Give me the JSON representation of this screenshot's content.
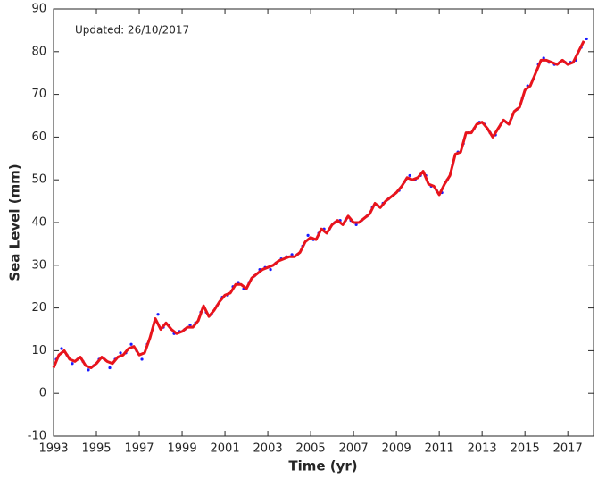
{
  "chart_data": {
    "type": "line",
    "annotation": "Updated: 26/10/2017",
    "x_label": "Time (yr)",
    "y_label": "Sea Level (mm)",
    "xlim": [
      1993,
      2018.2
    ],
    "ylim": [
      -10,
      90
    ],
    "xticks": [
      1993,
      1995,
      1997,
      1999,
      2001,
      2003,
      2005,
      2007,
      2009,
      2011,
      2013,
      2015,
      2017
    ],
    "yticks": [
      -10,
      0,
      10,
      20,
      30,
      40,
      50,
      60,
      70,
      80,
      90
    ],
    "grid": false,
    "series": [
      {
        "type": "scatter",
        "color": "#1a1aff",
        "x": [
          1993.125,
          1993.375,
          1993.625,
          1993.875,
          1994.125,
          1994.375,
          1994.625,
          1994.875,
          1995.125,
          1995.375,
          1995.625,
          1995.875,
          1996.125,
          1996.375,
          1996.625,
          1996.875,
          1997.125,
          1997.375,
          1997.625,
          1997.875,
          1998.125,
          1998.375,
          1998.625,
          1998.875,
          1999.125,
          1999.375,
          1999.625,
          1999.875,
          2000.125,
          2000.375,
          2000.625,
          2000.875,
          2001.125,
          2001.375,
          2001.625,
          2001.875,
          2002.125,
          2002.375,
          2002.625,
          2002.875,
          2003.125,
          2003.375,
          2003.625,
          2003.875,
          2004.125,
          2004.375,
          2004.625,
          2004.875,
          2005.125,
          2005.375,
          2005.625,
          2005.875,
          2006.125,
          2006.375,
          2006.625,
          2006.875,
          2007.125,
          2007.375,
          2007.625,
          2007.875,
          2008.125,
          2008.375,
          2008.625,
          2008.875,
          2009.125,
          2009.375,
          2009.625,
          2009.875,
          2010.125,
          2010.375,
          2010.625,
          2010.875,
          2011.125,
          2011.375,
          2011.625,
          2011.875,
          2012.125,
          2012.375,
          2012.625,
          2012.875,
          2013.125,
          2013.375,
          2013.625,
          2013.875,
          2014.125,
          2014.375,
          2014.625,
          2014.875,
          2015.125,
          2015.375,
          2015.625,
          2015.875,
          2016.125,
          2016.375,
          2016.625,
          2016.875,
          2017.125,
          2017.375,
          2017.625,
          2017.875
        ],
        "values": [
          8,
          10.5,
          9,
          7,
          8,
          7.5,
          5.5,
          6.5,
          8,
          8,
          6,
          8,
          9.5,
          9.5,
          11.5,
          10,
          8,
          11.5,
          15,
          18.5,
          15.5,
          16,
          14,
          14.5,
          15,
          16,
          16.5,
          19,
          19,
          18.5,
          20.5,
          22.5,
          23,
          25,
          26,
          24.5,
          26,
          27.5,
          29,
          29.5,
          29,
          30.5,
          31.5,
          32,
          32.5,
          32.5,
          34.5,
          37,
          36,
          37.5,
          38.5,
          38.5,
          40,
          40.5,
          40.5,
          40.5,
          39.5,
          40.5,
          41.5,
          43.5,
          44,
          44.5,
          45.5,
          46.5,
          47.5,
          49.5,
          51,
          50,
          51,
          51,
          48.5,
          47.5,
          47,
          50,
          53.5,
          56.5,
          58.5,
          61,
          62,
          63.5,
          63,
          61,
          60.5,
          63,
          63.5,
          64.5,
          66.5,
          69,
          72,
          73.5,
          77,
          78.5,
          77.5,
          77,
          77.5,
          77.5,
          77.5,
          78,
          81,
          83
        ]
      },
      {
        "type": "line",
        "color": "#e8141c",
        "x": [
          1993,
          1993.25,
          1993.5,
          1993.75,
          1994,
          1994.25,
          1994.5,
          1994.75,
          1995,
          1995.25,
          1995.5,
          1995.75,
          1996,
          1996.25,
          1996.5,
          1996.75,
          1997,
          1997.25,
          1997.5,
          1997.75,
          1998,
          1998.25,
          1998.5,
          1998.75,
          1999,
          1999.25,
          1999.5,
          1999.75,
          2000,
          2000.25,
          2000.5,
          2000.75,
          2001,
          2001.25,
          2001.5,
          2001.75,
          2002,
          2002.25,
          2002.5,
          2002.75,
          2003,
          2003.25,
          2003.5,
          2003.75,
          2004,
          2004.25,
          2004.5,
          2004.75,
          2005,
          2005.25,
          2005.5,
          2005.75,
          2006,
          2006.25,
          2006.5,
          2006.75,
          2007,
          2007.25,
          2007.5,
          2007.75,
          2008,
          2008.25,
          2008.5,
          2008.75,
          2009,
          2009.25,
          2009.5,
          2009.75,
          2010,
          2010.25,
          2010.5,
          2010.75,
          2011,
          2011.25,
          2011.5,
          2011.75,
          2012,
          2012.25,
          2012.5,
          2012.75,
          2013,
          2013.25,
          2013.5,
          2013.75,
          2014,
          2014.25,
          2014.5,
          2014.75,
          2015,
          2015.25,
          2015.5,
          2015.75,
          2016,
          2016.25,
          2016.5,
          2016.75,
          2017,
          2017.25,
          2017.5,
          2017.75
        ],
        "values": [
          6,
          9,
          10,
          8,
          7.5,
          8.5,
          6.5,
          6,
          7,
          8.5,
          7.5,
          7,
          8.5,
          9,
          10.5,
          11,
          9,
          9.5,
          13,
          17.5,
          15,
          16.5,
          15,
          14,
          14.5,
          15.5,
          15.5,
          17,
          20.5,
          18,
          19.5,
          21.5,
          23,
          23.5,
          25.5,
          25.5,
          24.5,
          27,
          28,
          29,
          29.5,
          30,
          31,
          31.5,
          32,
          32,
          33,
          35.5,
          36.5,
          36,
          38.5,
          37.5,
          39.5,
          40.5,
          39.5,
          41.5,
          40,
          40,
          41,
          42,
          44.5,
          43.5,
          45,
          46,
          47,
          48.5,
          50.5,
          50,
          50.5,
          52,
          49,
          48.5,
          46.5,
          49,
          51,
          56,
          56.5,
          61,
          61,
          63,
          63.5,
          62,
          60,
          62,
          64,
          63,
          66,
          67,
          71,
          72,
          75,
          78,
          78,
          77.5,
          77,
          78,
          77,
          77.5,
          80,
          82.5
        ]
      }
    ]
  }
}
